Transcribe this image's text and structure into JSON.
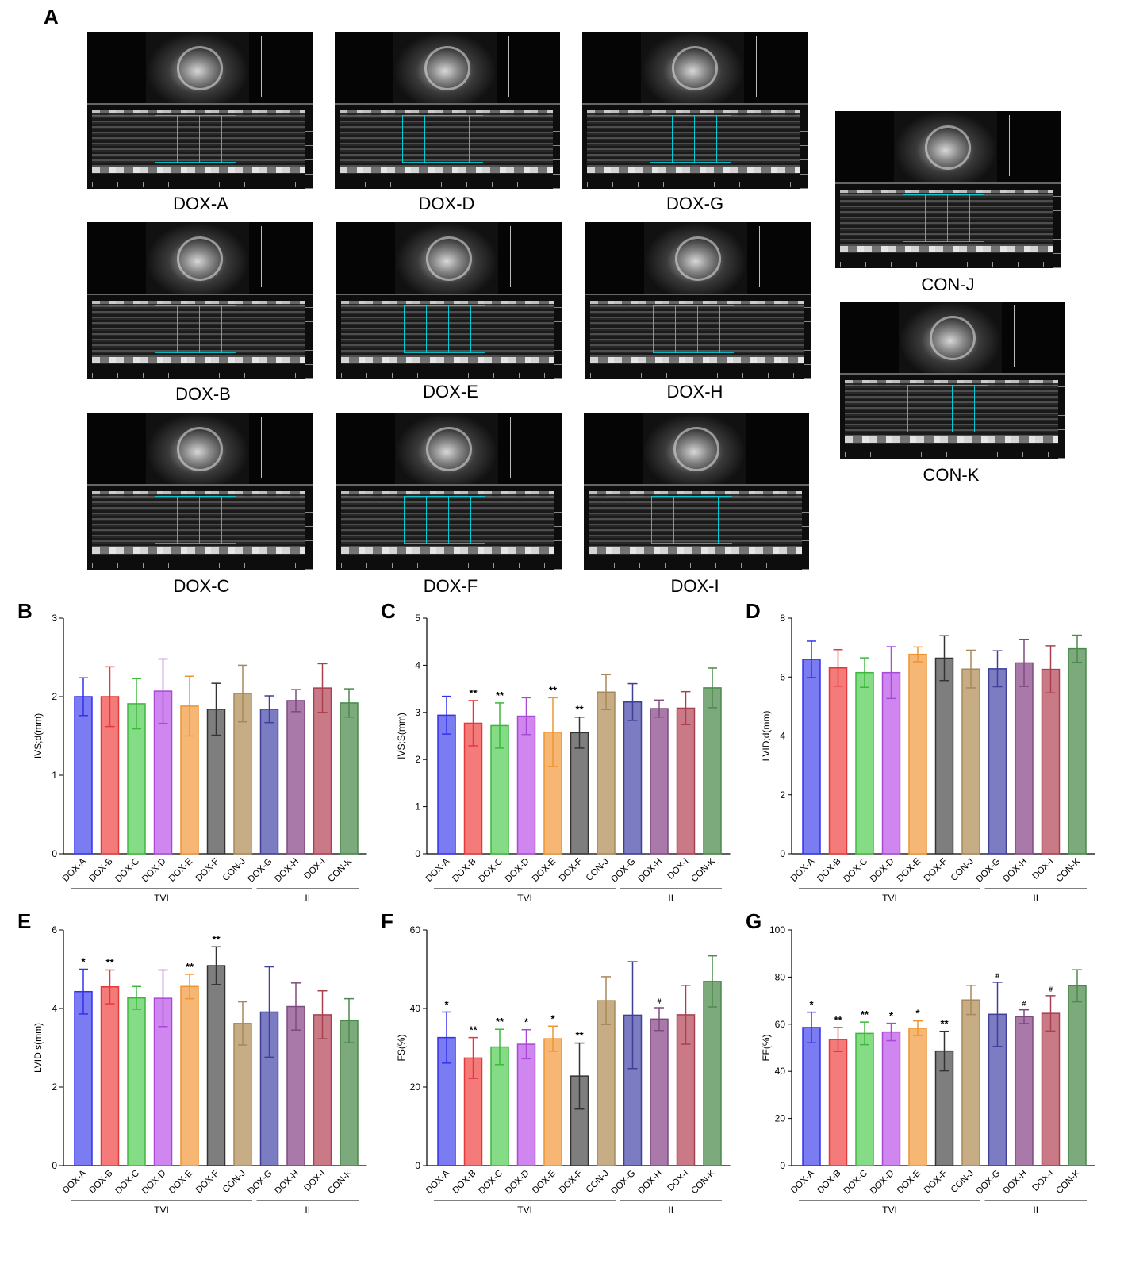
{
  "figure_panels": {
    "a": "A",
    "b": "B",
    "c": "C",
    "d": "D",
    "e": "E",
    "f": "F",
    "g": "G"
  },
  "echo_images": [
    {
      "label": "DOX-A"
    },
    {
      "label": "DOX-D"
    },
    {
      "label": "DOX-G"
    },
    {
      "label": "DOX-B"
    },
    {
      "label": "DOX-E"
    },
    {
      "label": "DOX-H"
    },
    {
      "label": "DOX-C"
    },
    {
      "label": "DOX-F"
    },
    {
      "label": "DOX-I"
    },
    {
      "label": "CON-J"
    },
    {
      "label": "CON-K"
    }
  ],
  "colors": {
    "DOX-A": "#7b7bf2",
    "DOX-B": "#f57a7a",
    "DOX-C": "#86dc86",
    "DOX-D": "#cf86ef",
    "DOX-E": "#f7b774",
    "DOX-F": "#7e7e7e",
    "CON-J": "#c6ad85",
    "DOX-G": "#7c7cc2",
    "DOX-H": "#a97aa9",
    "DOX-I": "#c97a86",
    "CON-K": "#7daa7d"
  },
  "edge_colors": {
    "DOX-A": "#3333ee",
    "DOX-B": "#e23a3a",
    "DOX-C": "#3cb83c",
    "DOX-D": "#a84ad6",
    "DOX-E": "#ee9433",
    "DOX-F": "#333333",
    "CON-J": "#a8885a",
    "DOX-G": "#3f3f96",
    "DOX-H": "#7e4a7e",
    "DOX-I": "#a8404e",
    "CON-K": "#4a8a4a"
  },
  "chart_data": [
    {
      "panel": "B",
      "type": "bar",
      "ylabel": "IVS;d(mm)",
      "ylim": [
        0,
        3
      ],
      "yticks": [
        "0",
        "1",
        "2",
        "3"
      ],
      "categories": [
        "DOX-A",
        "DOX-B",
        "DOX-C",
        "DOX-D",
        "DOX-E",
        "DOX-F",
        "CON-J",
        "DOX-G",
        "DOX-H",
        "DOX-I",
        "CON-K"
      ],
      "values": [
        2.0,
        2.0,
        1.91,
        2.07,
        1.88,
        1.84,
        2.04,
        1.84,
        1.95,
        2.11,
        1.92
      ],
      "errors": [
        0.24,
        0.38,
        0.32,
        0.41,
        0.38,
        0.33,
        0.36,
        0.17,
        0.14,
        0.31,
        0.18
      ],
      "sig": [
        "",
        "",
        "",
        "",
        "",
        "",
        "",
        "",
        "",
        "",
        ""
      ],
      "groups": [
        {
          "label": "TVI",
          "from": 0,
          "to": 6
        },
        {
          "label": "II",
          "from": 7,
          "to": 10
        }
      ]
    },
    {
      "panel": "C",
      "type": "bar",
      "ylabel": "IVS;S(mm)",
      "ylim": [
        0,
        5
      ],
      "yticks": [
        "0",
        "1",
        "2",
        "3",
        "4",
        "5"
      ],
      "categories": [
        "DOX-A",
        "DOX-B",
        "DOX-C",
        "DOX-D",
        "DOX-E",
        "DOX-F",
        "CON-J",
        "DOX-G",
        "DOX-H",
        "DOX-I",
        "CON-K"
      ],
      "values": [
        2.94,
        2.77,
        2.72,
        2.92,
        2.58,
        2.57,
        3.43,
        3.22,
        3.08,
        3.09,
        3.52
      ],
      "errors": [
        0.4,
        0.48,
        0.48,
        0.39,
        0.73,
        0.33,
        0.37,
        0.39,
        0.18,
        0.35,
        0.42
      ],
      "sig": [
        "",
        "**",
        "**",
        "",
        "**",
        "**",
        "",
        "",
        "",
        "",
        ""
      ],
      "groups": [
        {
          "label": "TVI",
          "from": 0,
          "to": 6
        },
        {
          "label": "II",
          "from": 7,
          "to": 10
        }
      ]
    },
    {
      "panel": "D",
      "type": "bar",
      "ylabel": "LVID;d(mm)",
      "ylim": [
        0,
        8
      ],
      "yticks": [
        "0",
        "2",
        "4",
        "6",
        "8"
      ],
      "categories": [
        "DOX-A",
        "DOX-B",
        "DOX-C",
        "DOX-D",
        "DOX-E",
        "DOX-F",
        "CON-J",
        "DOX-G",
        "DOX-H",
        "DOX-I",
        "CON-K"
      ],
      "values": [
        6.6,
        6.31,
        6.15,
        6.15,
        6.77,
        6.64,
        6.27,
        6.28,
        6.48,
        6.26,
        6.96
      ],
      "errors": [
        0.62,
        0.62,
        0.5,
        0.88,
        0.25,
        0.76,
        0.64,
        0.61,
        0.8,
        0.8,
        0.46
      ],
      "sig": [
        "",
        "",
        "",
        "",
        "",
        "",
        "",
        "",
        "",
        "",
        ""
      ],
      "groups": [
        {
          "label": "TVI",
          "from": 0,
          "to": 6
        },
        {
          "label": "II",
          "from": 7,
          "to": 10
        }
      ]
    },
    {
      "panel": "E",
      "type": "bar",
      "ylabel": "LVID;s(mm)",
      "ylim": [
        0,
        6
      ],
      "yticks": [
        "0",
        "2",
        "4",
        "6"
      ],
      "categories": [
        "DOX-A",
        "DOX-B",
        "DOX-C",
        "DOX-D",
        "DOX-E",
        "DOX-F",
        "CON-J",
        "DOX-G",
        "DOX-H",
        "DOX-I",
        "CON-K"
      ],
      "values": [
        4.43,
        4.55,
        4.27,
        4.26,
        4.56,
        5.09,
        3.62,
        3.91,
        4.05,
        3.84,
        3.69
      ],
      "errors": [
        0.57,
        0.43,
        0.29,
        0.72,
        0.31,
        0.48,
        0.55,
        1.15,
        0.6,
        0.61,
        0.56
      ],
      "sig": [
        "*",
        "**",
        "",
        "",
        "**",
        "**",
        "",
        "",
        "",
        "",
        ""
      ],
      "groups": [
        {
          "label": "TVI",
          "from": 0,
          "to": 6
        },
        {
          "label": "II",
          "from": 7,
          "to": 10
        }
      ]
    },
    {
      "panel": "F",
      "type": "bar",
      "ylabel": "FS(%)",
      "ylim": [
        0,
        60
      ],
      "yticks": [
        "0",
        "20",
        "40",
        "60"
      ],
      "categories": [
        "DOX-A",
        "DOX-B",
        "DOX-C",
        "DOX-D",
        "DOX-E",
        "DOX-F",
        "CON-J",
        "DOX-G",
        "DOX-H",
        "DOX-I",
        "CON-K"
      ],
      "values": [
        32.6,
        27.4,
        30.2,
        30.9,
        32.3,
        22.8,
        42.0,
        38.3,
        37.3,
        38.4,
        46.9
      ],
      "errors": [
        6.5,
        5.2,
        4.5,
        3.7,
        3.2,
        8.4,
        6.1,
        13.6,
        2.9,
        7.5,
        6.5
      ],
      "sig": [
        "*",
        "**",
        "**",
        "*",
        "*",
        "**",
        "",
        "",
        "#",
        "",
        ""
      ],
      "groups": [
        {
          "label": "TVI",
          "from": 0,
          "to": 6
        },
        {
          "label": "II",
          "from": 7,
          "to": 10
        }
      ]
    },
    {
      "panel": "G",
      "type": "bar",
      "ylabel": "EF(%)",
      "ylim": [
        0,
        100
      ],
      "yticks": [
        "0",
        "20",
        "40",
        "60",
        "80",
        "100"
      ],
      "categories": [
        "DOX-A",
        "DOX-B",
        "DOX-C",
        "DOX-D",
        "DOX-E",
        "DOX-F",
        "CON-J",
        "DOX-G",
        "DOX-H",
        "DOX-I",
        "CON-K"
      ],
      "values": [
        58.6,
        53.5,
        56.1,
        56.7,
        58.3,
        48.6,
        70.3,
        64.2,
        63.2,
        64.6,
        76.3
      ],
      "errors": [
        6.5,
        5.1,
        4.8,
        3.7,
        3.1,
        8.4,
        6.2,
        13.6,
        2.9,
        7.5,
        6.8
      ],
      "sig": [
        "*",
        "**",
        "**",
        "*",
        "*",
        "**",
        "",
        "#",
        "#",
        "#",
        ""
      ],
      "groups": [
        {
          "label": "TVI",
          "from": 0,
          "to": 6
        },
        {
          "label": "II",
          "from": 7,
          "to": 10
        }
      ]
    }
  ]
}
